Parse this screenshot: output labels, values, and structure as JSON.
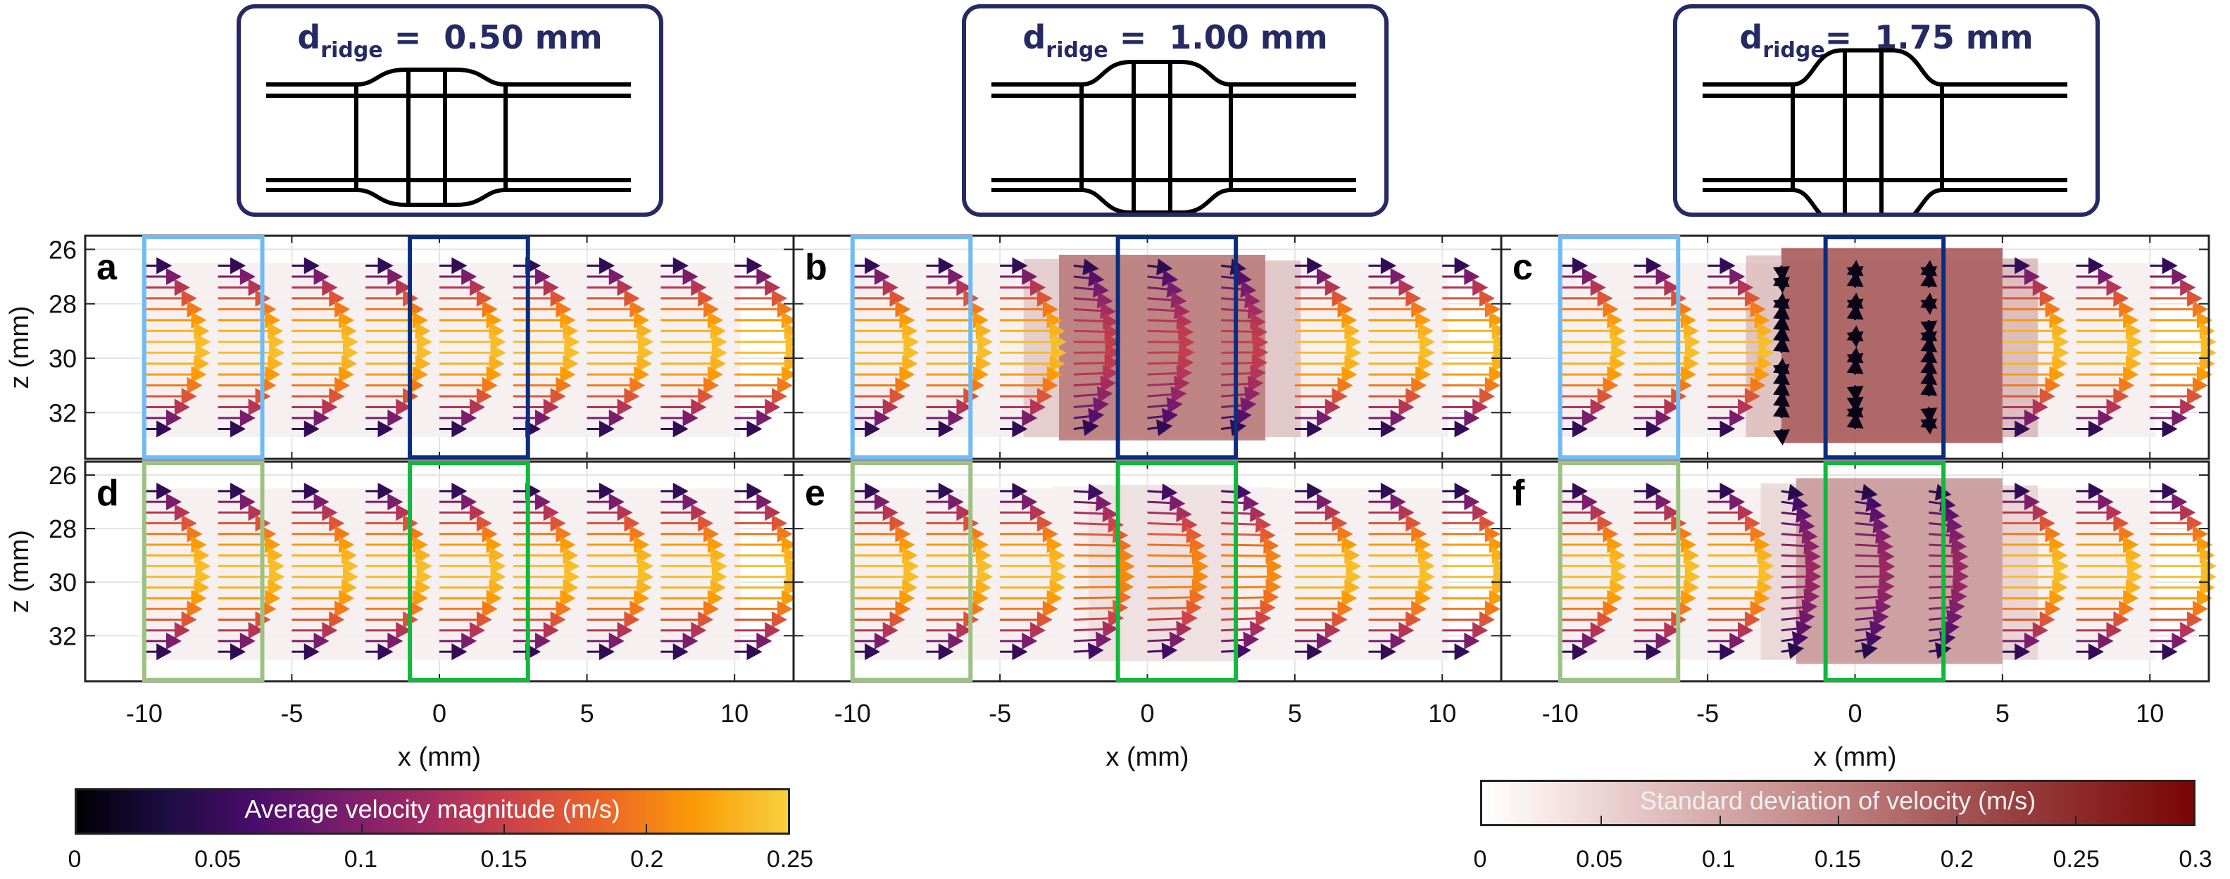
{
  "figure": {
    "schematics": [
      {
        "id": "schematic-0p50",
        "symbol": "d",
        "subscript": "ridge",
        "equals": "=",
        "value": "0.50 mm",
        "ridge_mm": 0.5
      },
      {
        "id": "schematic-1p00",
        "symbol": "d",
        "subscript": "ridge",
        "equals": "=",
        "value": "1.00 mm",
        "ridge_mm": 1.0
      },
      {
        "id": "schematic-1p75",
        "symbol": "d",
        "subscript": "ridge",
        "equals": "=",
        "value": "1.75 mm",
        "ridge_mm": 1.75
      }
    ],
    "colors": {
      "schematic_border": "#262a63",
      "box_inlet_top": "#6ebbf5",
      "box_ridge_top": "#0a2d7e",
      "box_inlet_bottom": "#9cc283",
      "box_ridge_bottom": "#10b83c"
    },
    "xlabel": "x (mm)",
    "ylabel": "z (mm)"
  },
  "chart_data": {
    "type": "quiver",
    "title": "",
    "xlabel": "x (mm)",
    "ylabel": "z (mm)",
    "xlim": [
      -12,
      12
    ],
    "ylim": [
      25.5,
      33.7
    ],
    "y_reversed": true,
    "xticks": [
      -10,
      -5,
      0,
      5,
      10
    ],
    "xtick_labels": [
      "-10",
      "-5",
      "0",
      "5",
      "10"
    ],
    "yticks": [
      26,
      28,
      30,
      32
    ],
    "ytick_labels": [
      "26",
      "28",
      "30",
      "32"
    ],
    "grid": true,
    "arrow_columns_x": [
      -10,
      -7.5,
      -5,
      -2.5,
      0,
      2.5,
      5,
      7.5,
      10
    ],
    "arrow_rows_z": [
      26.6,
      27.0,
      27.4,
      27.8,
      28.2,
      28.6,
      29.0,
      29.4,
      29.8,
      30.2,
      30.6,
      31.0,
      31.4,
      31.8,
      32.2,
      32.6
    ],
    "highlight_boxes": [
      {
        "row": "top",
        "name": "inlet-region",
        "x": [
          -10,
          -6
        ],
        "color": "#6ebbf5"
      },
      {
        "row": "top",
        "name": "ridge-region",
        "x": [
          -1,
          3
        ],
        "color": "#0a2d7e"
      },
      {
        "row": "bottom",
        "name": "inlet-region",
        "x": [
          -10,
          -6
        ],
        "color": "#9cc283"
      },
      {
        "row": "bottom",
        "name": "ridge-region",
        "x": [
          -1,
          3
        ],
        "color": "#10b83c"
      }
    ],
    "panels": [
      {
        "label": "a",
        "row": "top",
        "col": 0,
        "ridge_mm": 0.5,
        "peak_velocity": 0.24,
        "disturbance": 0.05,
        "std_peak": 0.03,
        "std_region": [
          -12,
          12
        ],
        "reversal": 0
      },
      {
        "label": "b",
        "row": "top",
        "col": 1,
        "ridge_mm": 1.0,
        "peak_velocity": 0.24,
        "disturbance": 0.55,
        "std_peak": 0.17,
        "std_region": [
          -3,
          4
        ],
        "reversal": 0
      },
      {
        "label": "c",
        "row": "top",
        "col": 2,
        "ridge_mm": 1.75,
        "peak_velocity": 0.24,
        "disturbance": 1.0,
        "std_peak": 0.21,
        "std_region": [
          -2.5,
          5
        ],
        "reversal": 1
      },
      {
        "label": "d",
        "row": "bottom",
        "col": 0,
        "ridge_mm": 0.5,
        "peak_velocity": 0.24,
        "disturbance": 0.03,
        "std_peak": 0.03,
        "std_region": [
          -12,
          12
        ],
        "reversal": 0
      },
      {
        "label": "e",
        "row": "bottom",
        "col": 1,
        "ridge_mm": 1.0,
        "peak_velocity": 0.24,
        "disturbance": 0.25,
        "std_peak": 0.04,
        "std_region": [
          -2,
          3
        ],
        "reversal": 0
      },
      {
        "label": "f",
        "row": "bottom",
        "col": 2,
        "ridge_mm": 1.75,
        "peak_velocity": 0.24,
        "disturbance": 0.7,
        "std_peak": 0.13,
        "std_region": [
          -2,
          5
        ],
        "reversal": 0
      }
    ],
    "colorbars": [
      {
        "name": "velocity-colorbar",
        "label": "Average velocity magnitude (m/s)",
        "colormap": "inferno",
        "range": [
          0,
          0.25
        ],
        "ticks": [
          0,
          0.05,
          0.1,
          0.15,
          0.2,
          0.25
        ],
        "tick_labels": [
          "0",
          "0.05",
          "0.1",
          "0.15",
          "0.2",
          "0.25"
        ]
      },
      {
        "name": "std-colorbar",
        "label": "Standard deviation of velocity (m/s)",
        "colormap": "white-to-darkred",
        "range": [
          0,
          0.3
        ],
        "ticks": [
          0,
          0.05,
          0.1,
          0.15,
          0.2,
          0.25,
          0.3
        ],
        "tick_labels": [
          "0",
          "0.05",
          "0.1",
          "0.15",
          "0.2",
          "0.25",
          "0.3"
        ]
      }
    ]
  }
}
